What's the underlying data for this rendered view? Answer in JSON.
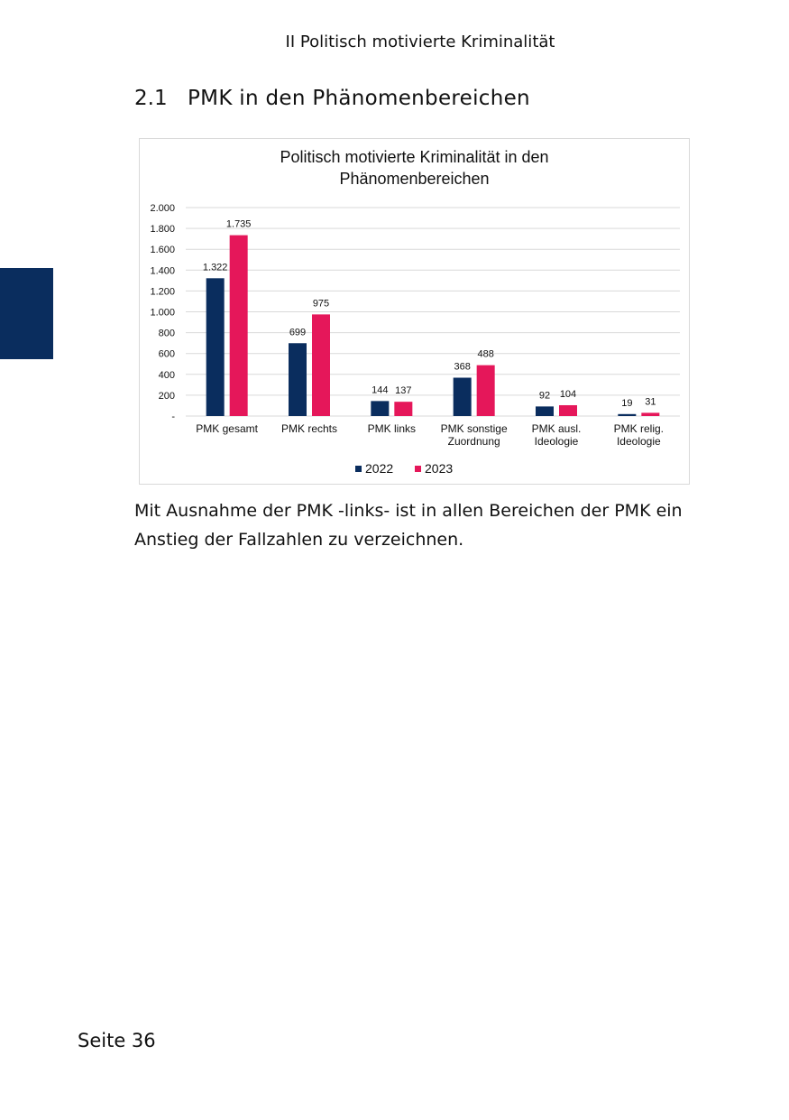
{
  "header": "II Politisch motivierte Kriminalität",
  "section": {
    "number": "2.1",
    "title": "PMK in den Phänomenbereichen"
  },
  "chart_data": {
    "type": "bar",
    "title": "Politisch motivierte Kriminalität in den Phänomenbereichen",
    "categories": [
      "PMK gesamt",
      "PMK rechts",
      "PMK links",
      "PMK sonstige Zuordnung",
      "PMK ausl. Ideologie",
      "PMK relig. Ideologie"
    ],
    "series": [
      {
        "name": "2022",
        "color": "#0a2d5e",
        "values": [
          1322,
          699,
          144,
          368,
          92,
          19
        ],
        "value_labels": [
          "1.322",
          "699",
          "144",
          "368",
          "92",
          "19"
        ]
      },
      {
        "name": "2023",
        "color": "#e5175a",
        "values": [
          1735,
          975,
          137,
          488,
          104,
          31
        ],
        "value_labels": [
          "1.735",
          "975",
          "137",
          "488",
          "104",
          "31"
        ]
      }
    ],
    "ylim": [
      0,
      2000
    ],
    "yticks": [
      {
        "value": 0,
        "label": "-"
      },
      200,
      400,
      600,
      800,
      {
        "value": 1000,
        "label": "1.000"
      },
      {
        "value": 1200,
        "label": "1.200"
      },
      {
        "value": 1400,
        "label": "1.400"
      },
      {
        "value": 1600,
        "label": "1.600"
      },
      {
        "value": 1800,
        "label": "1.800"
      },
      {
        "value": 2000,
        "label": "2.000"
      }
    ],
    "grid": true,
    "legend": "bottom"
  },
  "body": "Mit Ausnahme der PMK -links- ist in allen Bereichen der PMK ein Anstieg der Fallzahlen zu verzeichnen.",
  "footer": "Seite 36"
}
